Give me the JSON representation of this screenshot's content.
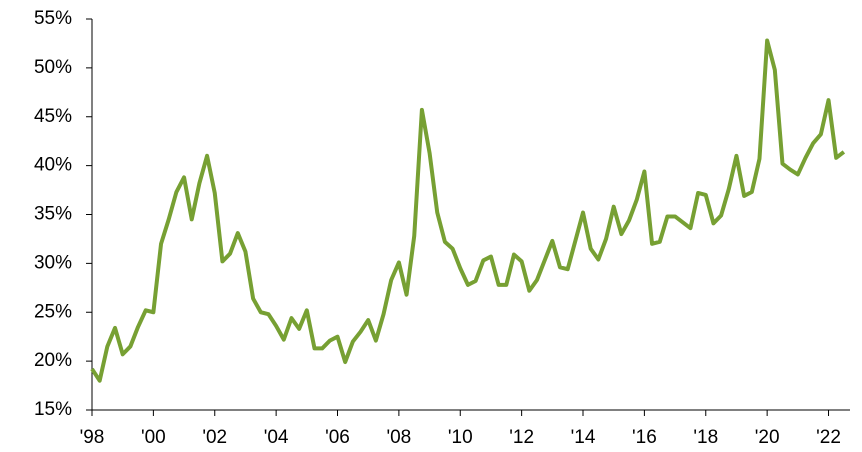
{
  "chart_data": {
    "type": "line",
    "x": [
      1998,
      1998.25,
      1998.5,
      1998.75,
      1999,
      1999.25,
      1999.5,
      1999.75,
      2000,
      2000.25,
      2000.5,
      2000.75,
      2001,
      2001.25,
      2001.5,
      2001.75,
      2002,
      2002.25,
      2002.5,
      2002.75,
      2003,
      2003.25,
      2003.5,
      2003.75,
      2004,
      2004.25,
      2004.5,
      2004.75,
      2005,
      2005.25,
      2005.5,
      2005.75,
      2006,
      2006.25,
      2006.5,
      2006.75,
      2007,
      2007.25,
      2007.5,
      2007.75,
      2008,
      2008.25,
      2008.5,
      2008.75,
      2009,
      2009.25,
      2009.5,
      2009.75,
      2010,
      2010.25,
      2010.5,
      2010.75,
      2011,
      2011.25,
      2011.5,
      2011.75,
      2012,
      2012.25,
      2012.5,
      2012.75,
      2013,
      2013.25,
      2013.5,
      2013.75,
      2014,
      2014.25,
      2014.5,
      2014.75,
      2015,
      2015.25,
      2015.5,
      2015.75,
      2016,
      2016.25,
      2016.5,
      2016.75,
      2017,
      2017.25,
      2017.5,
      2017.75,
      2018,
      2018.25,
      2018.5,
      2018.75,
      2019,
      2019.25,
      2019.5,
      2019.75,
      2020,
      2020.25,
      2020.5,
      2020.75,
      2021,
      2021.25,
      2021.5,
      2021.75,
      2022,
      2022.25,
      2022.5
    ],
    "series": [
      {
        "color": "#77a033",
        "values": [
          19.2,
          18.0,
          21.5,
          23.4,
          20.7,
          21.5,
          23.5,
          25.2,
          25.0,
          32.0,
          34.5,
          37.3,
          38.8,
          34.5,
          38.2,
          41.0,
          37.2,
          30.2,
          31.0,
          33.1,
          31.2,
          26.4,
          25.0,
          24.8,
          23.6,
          22.2,
          24.4,
          23.3,
          25.2,
          21.3,
          21.3,
          22.1,
          22.5,
          19.9,
          22.0,
          23.0,
          24.2,
          22.1,
          24.8,
          28.3,
          30.1,
          26.8,
          32.8,
          45.7,
          41.3,
          35.2,
          32.2,
          31.5,
          29.5,
          27.8,
          28.2,
          30.3,
          30.7,
          27.8,
          27.8,
          30.9,
          30.2,
          27.2,
          28.3,
          30.3,
          32.3,
          29.6,
          29.4,
          32.3,
          35.2,
          31.5,
          30.4,
          32.5,
          35.8,
          33.0,
          34.4,
          36.5,
          39.4,
          32.0,
          32.2,
          34.8,
          34.8,
          34.2,
          33.6,
          37.2,
          37.0,
          34.1,
          34.9,
          37.6,
          41.0,
          36.9,
          37.3,
          40.7,
          52.8,
          49.8,
          40.2,
          39.6,
          39.1,
          40.8,
          42.3,
          43.2,
          46.7,
          40.8,
          41.4
        ]
      }
    ],
    "xlim": [
      1998,
      2022.7
    ],
    "xticks": [
      {
        "value": 1998,
        "label": "'98"
      },
      {
        "value": 2000,
        "label": "'00"
      },
      {
        "value": 2002,
        "label": "'02"
      },
      {
        "value": 2004,
        "label": "'04"
      },
      {
        "value": 2006,
        "label": "'06"
      },
      {
        "value": 2008,
        "label": "'08"
      },
      {
        "value": 2010,
        "label": "'10"
      },
      {
        "value": 2012,
        "label": "'12"
      },
      {
        "value": 2014,
        "label": "'14"
      },
      {
        "value": 2016,
        "label": "'16"
      },
      {
        "value": 2018,
        "label": "'18"
      },
      {
        "value": 2020,
        "label": "'20"
      },
      {
        "value": 2022,
        "label": "'22"
      }
    ],
    "ylim": [
      15,
      55
    ],
    "yticks": [
      {
        "value": 15,
        "label": "15%"
      },
      {
        "value": 20,
        "label": "20%"
      },
      {
        "value": 25,
        "label": "25%"
      },
      {
        "value": 30,
        "label": "30%"
      },
      {
        "value": 35,
        "label": "35%"
      },
      {
        "value": 40,
        "label": "40%"
      },
      {
        "value": 45,
        "label": "45%"
      },
      {
        "value": 50,
        "label": "50%"
      },
      {
        "value": 55,
        "label": "55%"
      }
    ],
    "grid": false
  }
}
